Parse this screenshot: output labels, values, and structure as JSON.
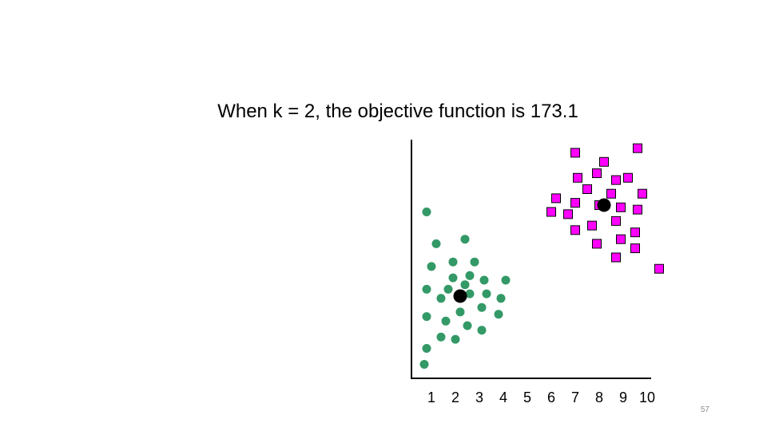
{
  "slide": {
    "title": "When k = 2, the objective function is 173.1",
    "page_number": "57"
  },
  "chart_data": {
    "type": "scatter",
    "title": "When k = 2, the objective function is 173.1",
    "xlabel": "",
    "ylabel": "",
    "xlim": [
      0.2,
      10.3
    ],
    "ylim": [
      0,
      10
    ],
    "x_ticks": [
      "1",
      "2",
      "3",
      "4",
      "5",
      "6",
      "7",
      "8",
      "9",
      "10"
    ],
    "grid": false,
    "legend": "none",
    "series": [
      {
        "marker": "circle",
        "color": "#339966",
        "points": [
          [
            0.8,
            7.0
          ],
          [
            1.2,
            5.6
          ],
          [
            2.4,
            5.8
          ],
          [
            1.0,
            4.6
          ],
          [
            1.9,
            4.8
          ],
          [
            2.8,
            4.8
          ],
          [
            1.9,
            4.1
          ],
          [
            2.6,
            4.2
          ],
          [
            3.2,
            4.0
          ],
          [
            4.1,
            4.0
          ],
          [
            1.7,
            3.6
          ],
          [
            2.4,
            3.8
          ],
          [
            0.8,
            3.6
          ],
          [
            1.4,
            3.2
          ],
          [
            2.6,
            3.4
          ],
          [
            3.3,
            3.4
          ],
          [
            3.9,
            3.2
          ],
          [
            2.2,
            2.6
          ],
          [
            3.1,
            2.8
          ],
          [
            3.8,
            2.5
          ],
          [
            0.8,
            2.4
          ],
          [
            1.6,
            2.2
          ],
          [
            2.5,
            2.0
          ],
          [
            3.1,
            1.8
          ],
          [
            1.4,
            1.5
          ],
          [
            2.0,
            1.4
          ],
          [
            0.8,
            1.0
          ],
          [
            0.7,
            0.3
          ]
        ]
      },
      {
        "marker": "square",
        "color": "#ff00ff",
        "points": [
          [
            7.0,
            9.6
          ],
          [
            9.6,
            9.8
          ],
          [
            8.2,
            9.2
          ],
          [
            7.1,
            8.5
          ],
          [
            7.9,
            8.7
          ],
          [
            8.7,
            8.4
          ],
          [
            9.2,
            8.5
          ],
          [
            7.5,
            8.0
          ],
          [
            8.5,
            7.8
          ],
          [
            9.8,
            7.8
          ],
          [
            6.2,
            7.6
          ],
          [
            7.0,
            7.4
          ],
          [
            8.0,
            7.3
          ],
          [
            8.9,
            7.2
          ],
          [
            9.6,
            7.1
          ],
          [
            6.0,
            7.0
          ],
          [
            6.7,
            6.9
          ],
          [
            8.7,
            6.6
          ],
          [
            7.0,
            6.2
          ],
          [
            7.7,
            6.4
          ],
          [
            9.5,
            6.1
          ],
          [
            8.9,
            5.8
          ],
          [
            7.9,
            5.6
          ],
          [
            9.5,
            5.4
          ],
          [
            8.7,
            5.0
          ],
          [
            10.5,
            4.5
          ]
        ]
      },
      {
        "marker": "circle-large",
        "color": "#000000",
        "points": [
          [
            2.2,
            3.3
          ],
          [
            8.2,
            7.3
          ]
        ]
      }
    ]
  }
}
